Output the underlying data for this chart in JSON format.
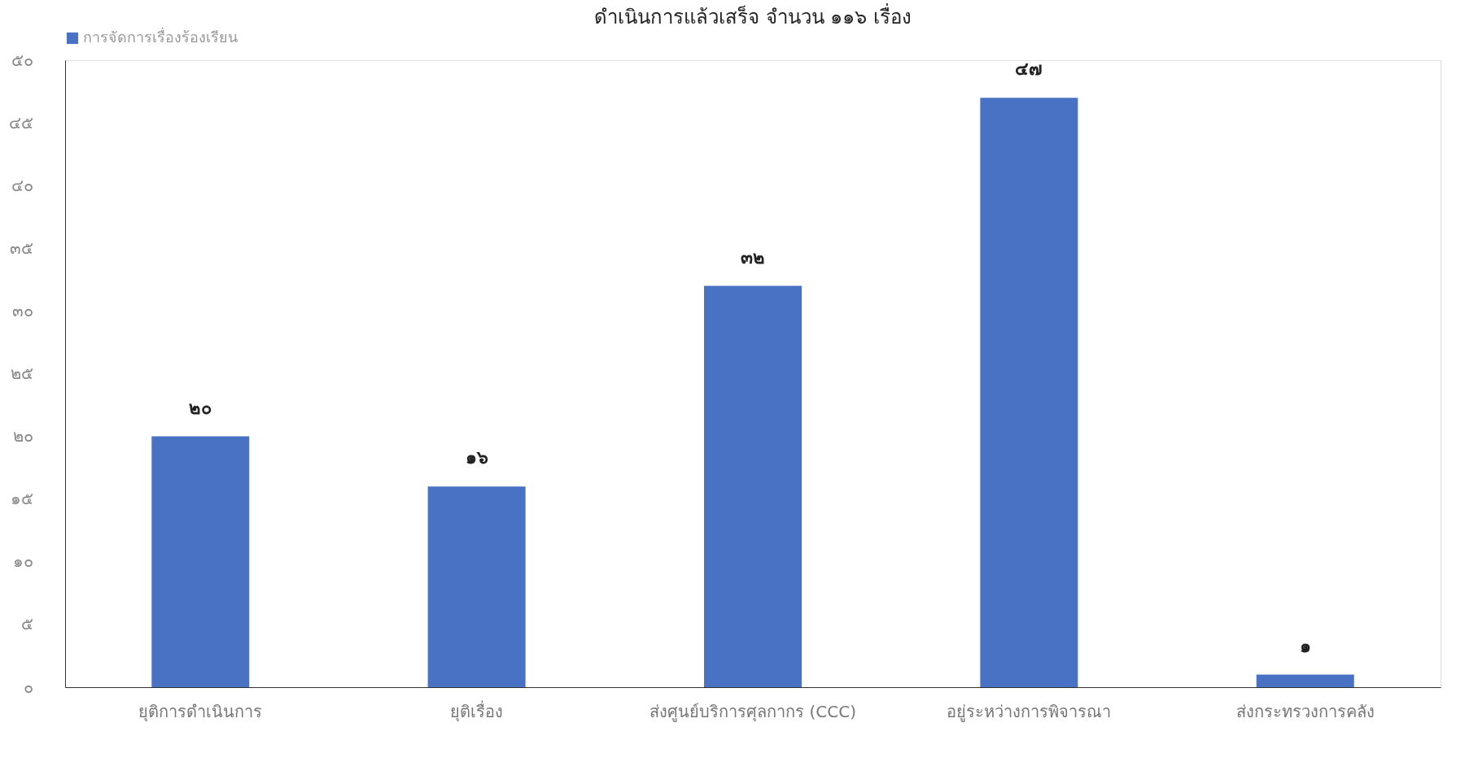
{
  "chart_data": {
    "type": "bar",
    "title": "ดำเนินการแล้วเสร็จ จำนวน ๑๑๖ เรื่อง",
    "categories": [
      "ยุติการดำเนินการ",
      "ยุติเรื่อง",
      "ส่งศูนย์บริการศุลกากร (CCC)",
      "อยู่ระหว่างการพิจารณา",
      "ส่งกระทรวงการคลัง"
    ],
    "series": [
      {
        "name": "การจัดการเรื่องร้องเรียน",
        "color": "#4a72c4",
        "values": [
          20,
          16,
          32,
          47,
          1
        ],
        "value_labels": [
          "๒๐",
          "๑๖",
          "๓๒",
          "๔๗",
          "๑"
        ]
      }
    ],
    "ylim": [
      0,
      50
    ],
    "yticks": [
      {
        "value": 0,
        "label": "๐"
      },
      {
        "value": 5,
        "label": "๕"
      },
      {
        "value": 10,
        "label": "๑๐"
      },
      {
        "value": 15,
        "label": "๑๕"
      },
      {
        "value": 20,
        "label": "๒๐"
      },
      {
        "value": 25,
        "label": "๒๕"
      },
      {
        "value": 30,
        "label": "๓๐"
      },
      {
        "value": 35,
        "label": "๓๕"
      },
      {
        "value": 40,
        "label": "๔๐"
      },
      {
        "value": 45,
        "label": "๔๕"
      },
      {
        "value": 50,
        "label": "๕๐"
      }
    ],
    "grid": false,
    "legend": "top"
  }
}
